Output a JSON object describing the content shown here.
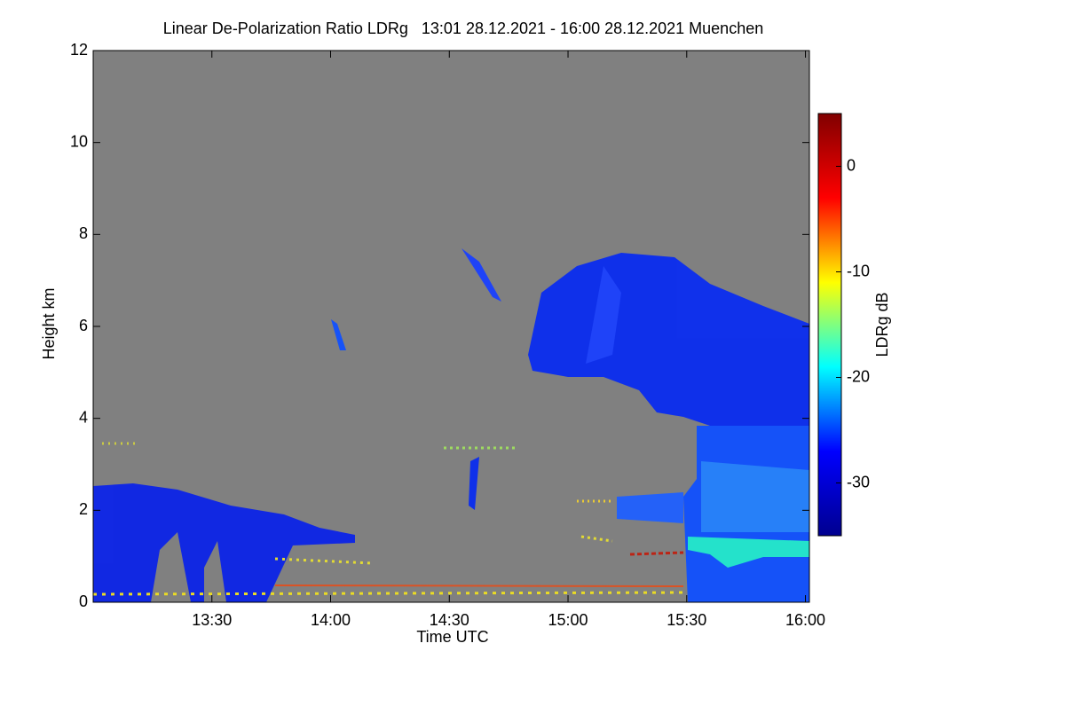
{
  "chart_data": {
    "type": "heatmap",
    "title": "Linear De-Polarization Ratio LDRg   13:01 28.12.2021 - 16:00 28.12.2021 Muenchen",
    "x_label": "Time UTC",
    "y_label": "Height km",
    "xlim": [
      780,
      961
    ],
    "xticks": [
      {
        "value": 810,
        "label": "13:30"
      },
      {
        "value": 840,
        "label": "14:00"
      },
      {
        "value": 870,
        "label": "14:30"
      },
      {
        "value": 900,
        "label": "15:00"
      },
      {
        "value": 930,
        "label": "15:30"
      },
      {
        "value": 960,
        "label": "16:00"
      }
    ],
    "ylim": [
      0,
      12
    ],
    "yticks": [
      0,
      2,
      4,
      6,
      8,
      10,
      12
    ],
    "background": "#808080",
    "colorbar": {
      "label": "LDRg dB",
      "lim": [
        -35,
        5
      ],
      "ticks": [
        -30,
        -20,
        -10,
        0
      ],
      "colors": [
        "#00008f",
        "#0000ff",
        "#00ffff",
        "#ffff00",
        "#ff0000",
        "#800000"
      ]
    }
  }
}
